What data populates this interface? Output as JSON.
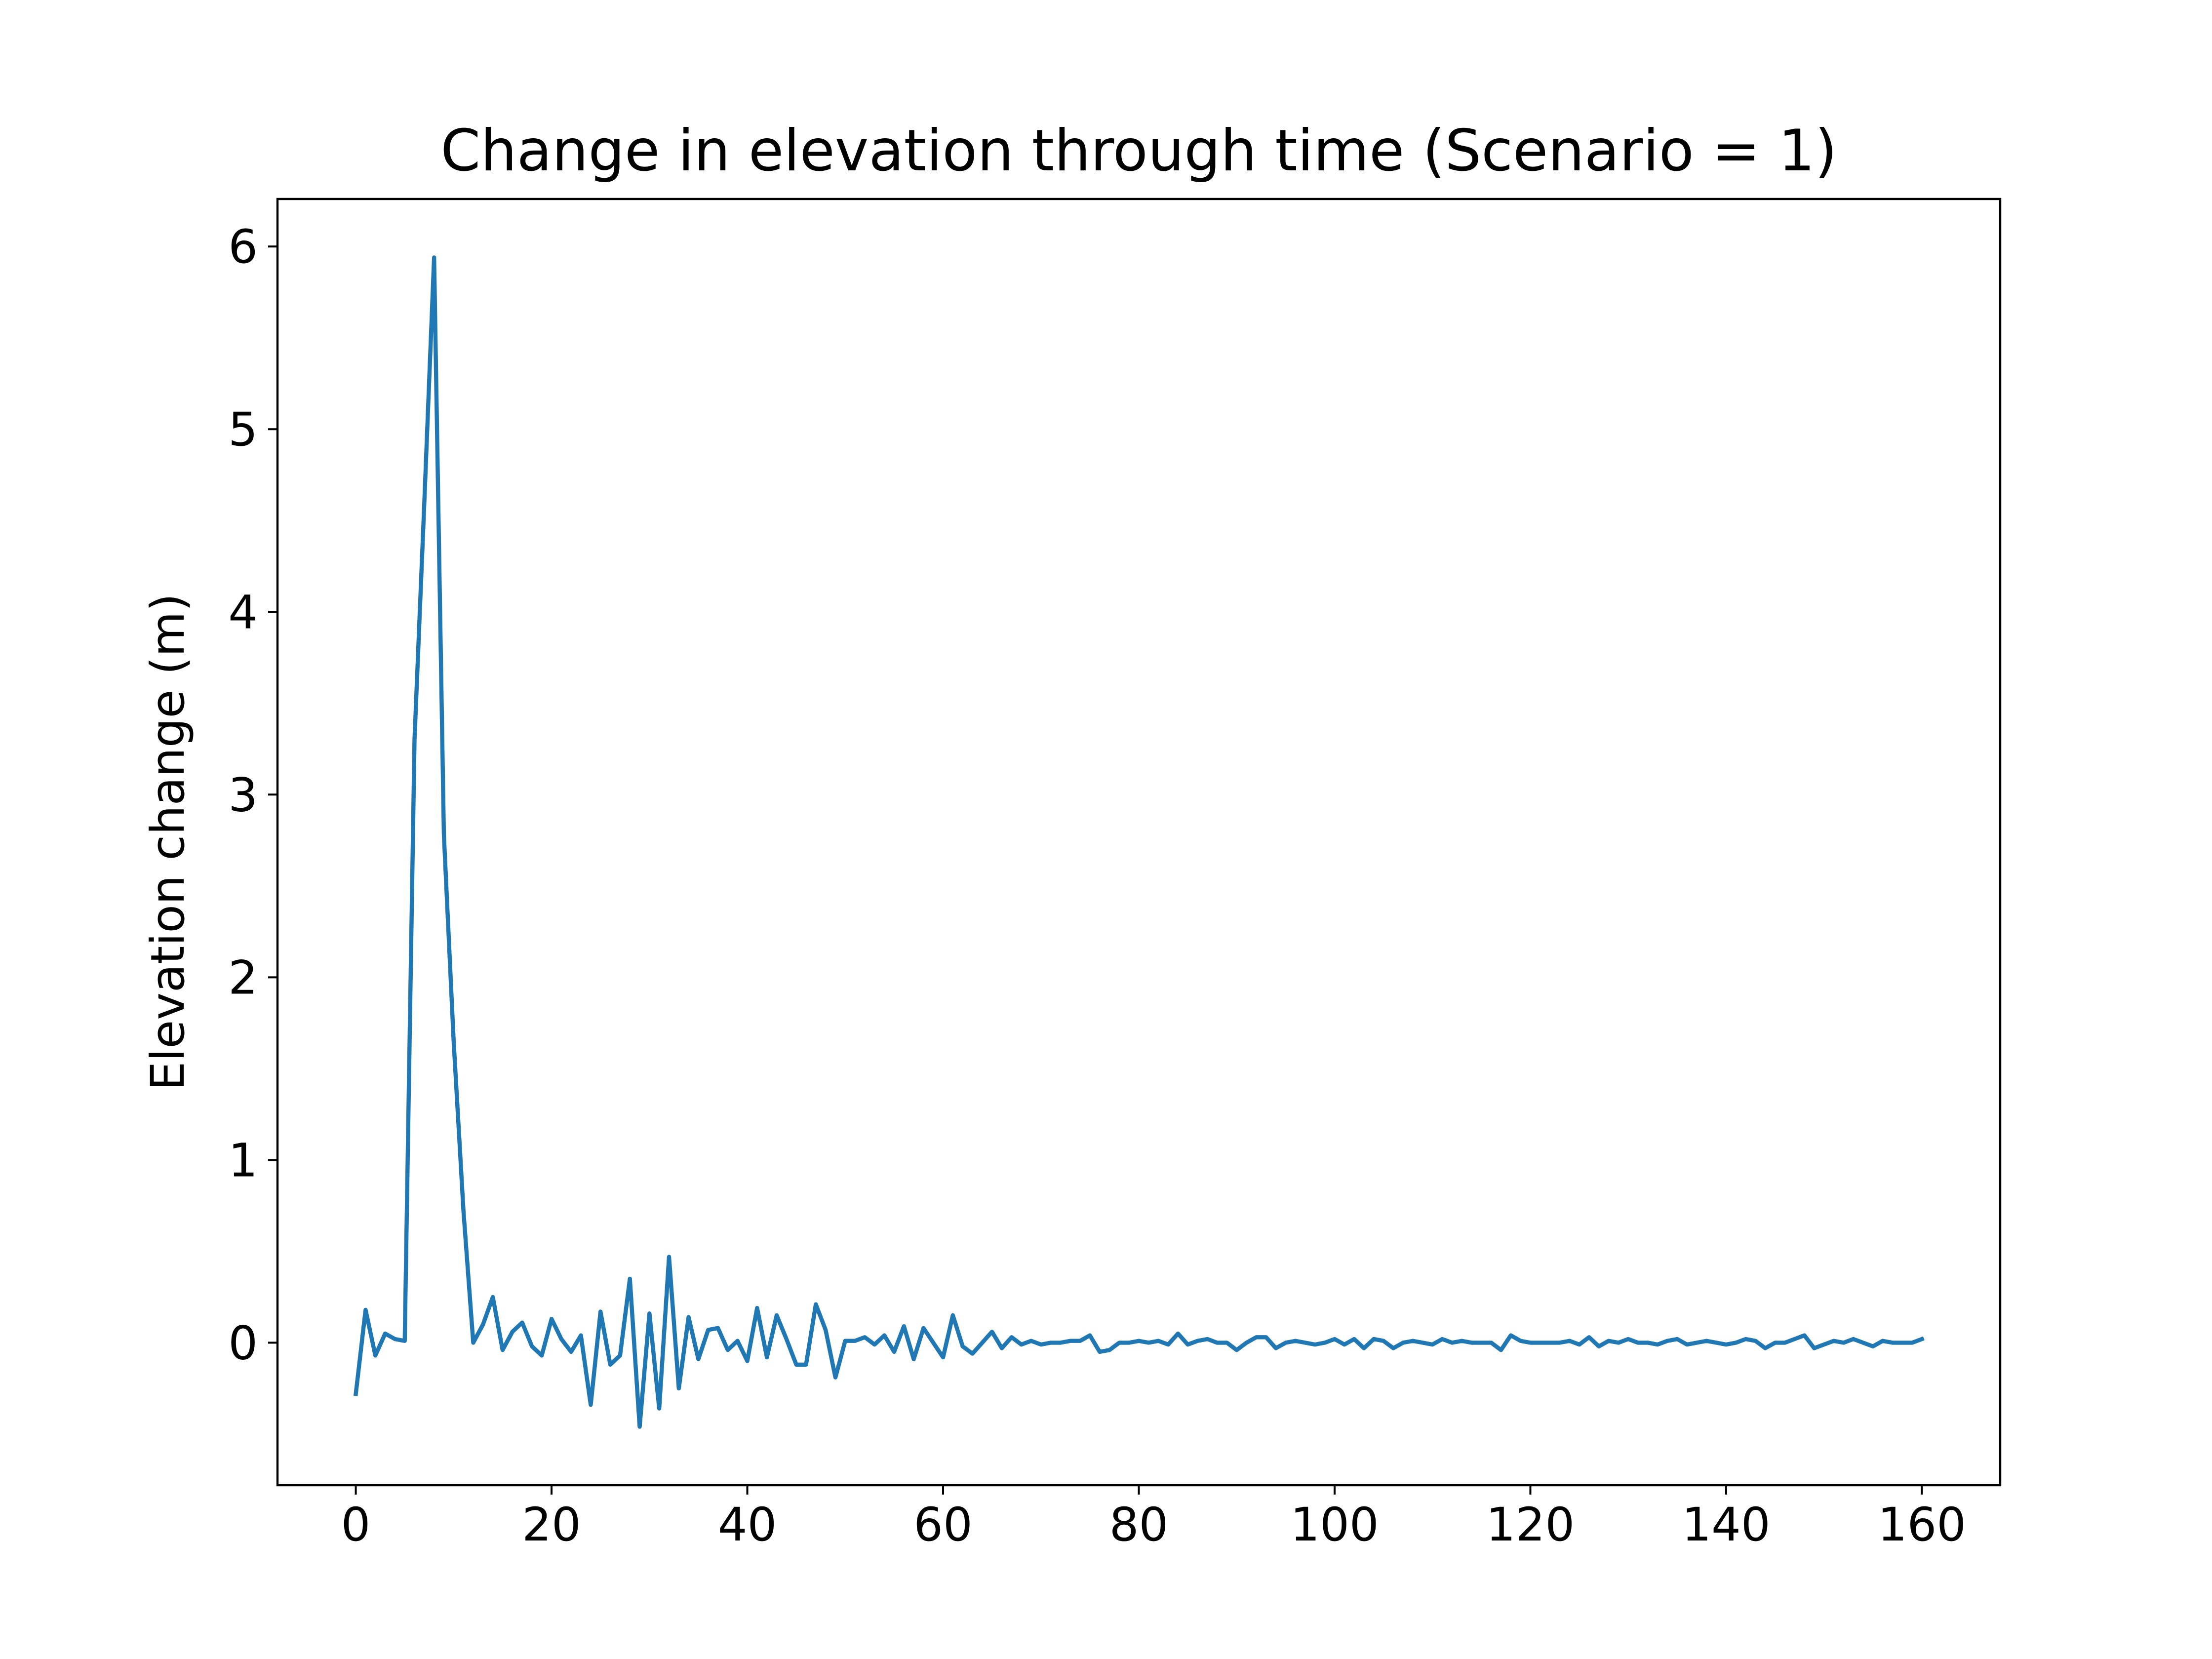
{
  "chart_data": {
    "type": "line",
    "title": "Change in elevation through time (Scenario = 1)",
    "xlabel": "",
    "ylabel": "Elevation change (m)",
    "xlim": [
      -8,
      168
    ],
    "ylim": [
      -0.78,
      6.26
    ],
    "xticks": [
      0,
      20,
      40,
      60,
      80,
      100,
      120,
      140,
      160
    ],
    "yticks": [
      0,
      1,
      2,
      3,
      4,
      5,
      6
    ],
    "grid": false,
    "legend": "none",
    "series": [
      {
        "color": "#1f77b4",
        "x": [
          0,
          1,
          2,
          3,
          4,
          5,
          6,
          7,
          8,
          9,
          10,
          11,
          12,
          13,
          14,
          15,
          16,
          17,
          18,
          19,
          20,
          21,
          22,
          23,
          24,
          25,
          26,
          27,
          28,
          29,
          30,
          31,
          32,
          33,
          34,
          35,
          36,
          37,
          38,
          39,
          40,
          41,
          42,
          43,
          44,
          45,
          46,
          47,
          48,
          49,
          50,
          51,
          52,
          53,
          54,
          55,
          56,
          57,
          58,
          59,
          60,
          61,
          62,
          63,
          64,
          65,
          66,
          67,
          68,
          69,
          70,
          71,
          72,
          73,
          74,
          75,
          76,
          77,
          78,
          79,
          80,
          81,
          82,
          83,
          84,
          85,
          86,
          87,
          88,
          89,
          90,
          91,
          92,
          93,
          94,
          95,
          96,
          97,
          98,
          99,
          100,
          101,
          102,
          103,
          104,
          105,
          106,
          107,
          108,
          109,
          110,
          111,
          112,
          113,
          114,
          115,
          116,
          117,
          118,
          119,
          120,
          121,
          122,
          123,
          124,
          125,
          126,
          127,
          128,
          129,
          130,
          131,
          132,
          133,
          134,
          135,
          136,
          137,
          138,
          139,
          140,
          141,
          142,
          143,
          144,
          145,
          146,
          147,
          148,
          149,
          150,
          151,
          152,
          153,
          154,
          155,
          156,
          157,
          158,
          159,
          160
        ],
        "values": [
          -0.28,
          0.18,
          -0.07,
          0.05,
          0.02,
          0.01,
          3.3,
          4.6,
          5.94,
          2.78,
          1.65,
          0.72,
          0.0,
          0.1,
          0.25,
          -0.04,
          0.06,
          0.11,
          -0.02,
          -0.07,
          0.13,
          0.02,
          -0.05,
          0.04,
          -0.34,
          0.17,
          -0.12,
          -0.07,
          0.35,
          -0.46,
          0.16,
          -0.36,
          0.47,
          -0.25,
          0.14,
          -0.09,
          0.07,
          0.08,
          -0.04,
          0.01,
          -0.1,
          0.19,
          -0.08,
          0.15,
          0.02,
          -0.12,
          -0.12,
          0.21,
          0.07,
          -0.19,
          0.01,
          0.01,
          0.03,
          -0.01,
          0.04,
          -0.05,
          0.09,
          -0.09,
          0.08,
          0.0,
          -0.08,
          0.15,
          -0.02,
          -0.06,
          0.0,
          0.06,
          -0.03,
          0.03,
          -0.01,
          0.01,
          -0.01,
          0.0,
          0.0,
          0.01,
          0.01,
          0.04,
          -0.05,
          -0.04,
          0.0,
          0.0,
          0.01,
          0.0,
          0.01,
          -0.01,
          0.05,
          -0.01,
          0.01,
          0.02,
          0.0,
          0.0,
          -0.04,
          0.0,
          0.03,
          0.03,
          -0.03,
          0.0,
          0.01,
          0.0,
          -0.01,
          0.0,
          0.02,
          -0.01,
          0.02,
          -0.03,
          0.02,
          0.01,
          -0.03,
          0.0,
          0.01,
          0.0,
          -0.01,
          0.02,
          0.0,
          0.01,
          0.0,
          0.0,
          0.0,
          -0.04,
          0.04,
          0.01,
          0.0,
          0.0,
          0.0,
          0.0,
          0.01,
          -0.01,
          0.03,
          -0.02,
          0.01,
          0.0,
          0.02,
          0.0,
          0.0,
          -0.01,
          0.01,
          0.02,
          -0.01,
          0.0,
          0.01,
          0.0,
          -0.01,
          0.0,
          0.02,
          0.01,
          -0.03,
          0.0,
          0.0,
          0.02,
          0.04,
          -0.03,
          -0.01,
          0.01,
          0.0,
          0.02,
          0.0,
          -0.02,
          0.01,
          0.0,
          0.0,
          0.0,
          0.02
        ]
      }
    ]
  }
}
